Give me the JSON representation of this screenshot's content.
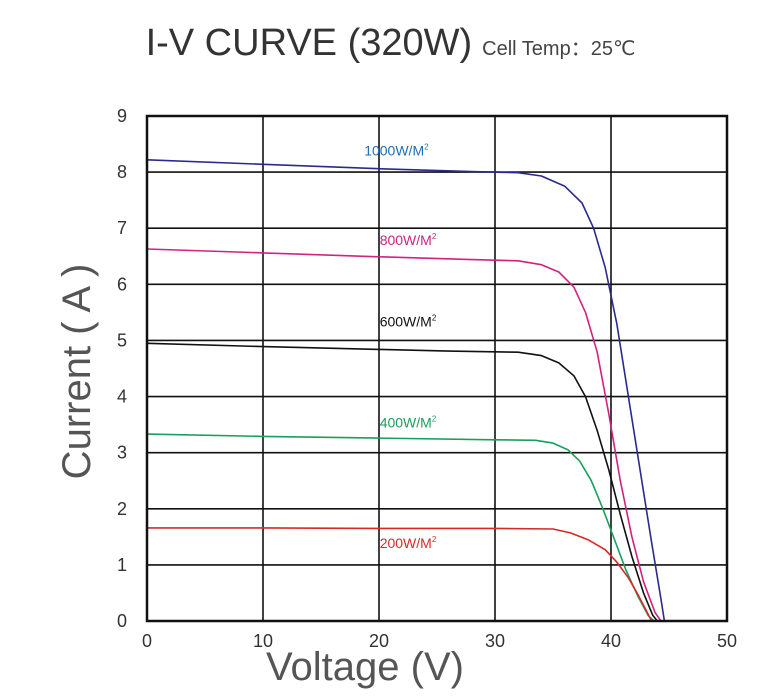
{
  "title": {
    "main": "I-V CURVE (320W)",
    "sub": "Cell Temp：25℃"
  },
  "chart_data": {
    "type": "line",
    "title": "I-V CURVE (320W)",
    "subtitle": "Cell Temp：25℃",
    "xlabel": "Voltage (V)",
    "ylabel": "Current ( A )",
    "xlim": [
      0,
      50
    ],
    "ylim": [
      0,
      9
    ],
    "xticks": [
      0,
      10,
      20,
      30,
      40,
      50
    ],
    "yticks": [
      0,
      1,
      2,
      3,
      4,
      5,
      6,
      7,
      8,
      9
    ],
    "grid": true,
    "series": [
      {
        "name": "1000W/M",
        "sup": "2",
        "color": "#2a2a8c",
        "label_color": "#1f6fb5",
        "label_at": [
          21.5,
          8.3
        ],
        "points": [
          [
            0,
            8.22
          ],
          [
            10,
            8.14
          ],
          [
            20,
            8.06
          ],
          [
            28,
            8.01
          ],
          [
            32,
            7.99
          ],
          [
            34,
            7.93
          ],
          [
            36,
            7.75
          ],
          [
            37.5,
            7.45
          ],
          [
            38.5,
            7.0
          ],
          [
            39.5,
            6.3
          ],
          [
            40.5,
            5.3
          ],
          [
            41.5,
            4.0
          ],
          [
            42.5,
            2.7
          ],
          [
            43.5,
            1.4
          ],
          [
            44.3,
            0.4
          ],
          [
            44.6,
            0
          ]
        ]
      },
      {
        "name": "800W/M",
        "sup": "2",
        "color": "#d0237f",
        "label_color": "#d0237f",
        "label_at": [
          22.5,
          6.7
        ],
        "points": [
          [
            0,
            6.63
          ],
          [
            10,
            6.56
          ],
          [
            20,
            6.49
          ],
          [
            28,
            6.44
          ],
          [
            32,
            6.42
          ],
          [
            34,
            6.35
          ],
          [
            35.5,
            6.22
          ],
          [
            36.8,
            5.95
          ],
          [
            37.8,
            5.5
          ],
          [
            38.8,
            4.8
          ],
          [
            39.8,
            3.7
          ],
          [
            40.8,
            2.5
          ],
          [
            41.8,
            1.5
          ],
          [
            42.8,
            0.7
          ],
          [
            43.8,
            0.15
          ],
          [
            44.3,
            0
          ]
        ]
      },
      {
        "name": "600W/M",
        "sup": "2",
        "color": "#111111",
        "label_color": "#111111",
        "label_at": [
          22.5,
          5.25
        ],
        "points": [
          [
            0,
            4.95
          ],
          [
            10,
            4.89
          ],
          [
            20,
            4.84
          ],
          [
            26,
            4.81
          ],
          [
            32,
            4.79
          ],
          [
            34,
            4.73
          ],
          [
            35.5,
            4.6
          ],
          [
            36.8,
            4.37
          ],
          [
            37.8,
            4.0
          ],
          [
            38.8,
            3.4
          ],
          [
            39.8,
            2.7
          ],
          [
            40.8,
            1.9
          ],
          [
            41.8,
            1.15
          ],
          [
            42.8,
            0.5
          ],
          [
            43.6,
            0.1
          ],
          [
            44.0,
            0
          ]
        ]
      },
      {
        "name": "400W/M",
        "sup": "2",
        "color": "#18a05a",
        "label_color": "#18a05a",
        "label_at": [
          22.5,
          3.45
        ],
        "points": [
          [
            0,
            3.33
          ],
          [
            10,
            3.29
          ],
          [
            20,
            3.26
          ],
          [
            30,
            3.23
          ],
          [
            33.5,
            3.22
          ],
          [
            35,
            3.17
          ],
          [
            36.3,
            3.05
          ],
          [
            37.3,
            2.85
          ],
          [
            38.3,
            2.5
          ],
          [
            39.3,
            2.0
          ],
          [
            40.3,
            1.45
          ],
          [
            41.3,
            0.9
          ],
          [
            42.3,
            0.45
          ],
          [
            43.2,
            0.1
          ],
          [
            43.7,
            0
          ]
        ]
      },
      {
        "name": "200W/M",
        "sup": "2",
        "color": "#d42a2a",
        "label_color": "#d42a2a",
        "label_at": [
          22.5,
          1.3
        ],
        "points": [
          [
            0,
            1.66
          ],
          [
            10,
            1.66
          ],
          [
            20,
            1.65
          ],
          [
            30,
            1.65
          ],
          [
            35,
            1.64
          ],
          [
            36.5,
            1.57
          ],
          [
            38,
            1.45
          ],
          [
            39.5,
            1.27
          ],
          [
            40.5,
            1.05
          ],
          [
            41.5,
            0.77
          ],
          [
            42.3,
            0.48
          ],
          [
            43.0,
            0.2
          ],
          [
            43.5,
            0
          ]
        ]
      }
    ]
  }
}
